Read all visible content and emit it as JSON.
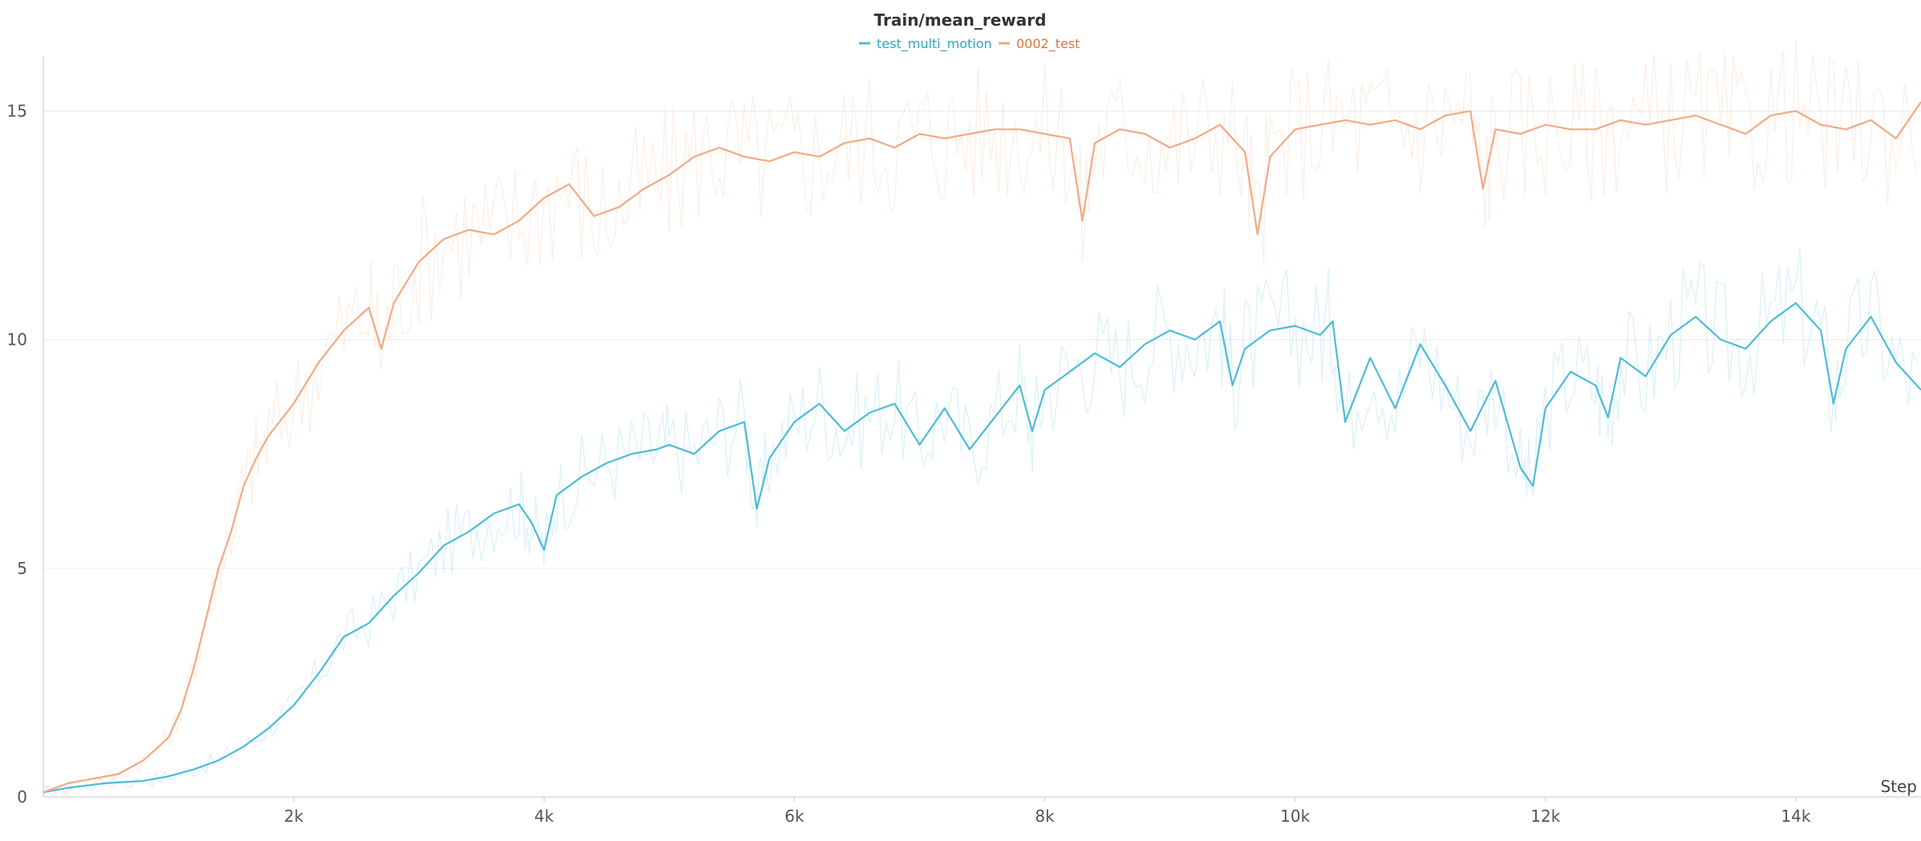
{
  "chart_data": {
    "type": "line",
    "title": "Train/mean_reward",
    "xlabel": "Step",
    "ylabel": "",
    "xlim": [
      0,
      15000
    ],
    "ylim": [
      0,
      16.2
    ],
    "x_ticks": [
      2000,
      4000,
      6000,
      8000,
      10000,
      12000,
      14000
    ],
    "x_tick_labels": [
      "2k",
      "4k",
      "6k",
      "8k",
      "10k",
      "12k",
      "14k"
    ],
    "y_ticks": [
      0,
      5,
      10,
      15
    ],
    "y_tick_labels": [
      "0",
      "5",
      "10",
      "15"
    ],
    "grid": true,
    "legend_position": "top-center",
    "series": [
      {
        "name": "test_multi_motion",
        "color": "#4cbcd6",
        "x": [
          0,
          200,
          500,
          800,
          1000,
          1200,
          1400,
          1600,
          1800,
          2000,
          2200,
          2400,
          2600,
          2800,
          3000,
          3200,
          3400,
          3600,
          3800,
          3900,
          4000,
          4100,
          4300,
          4500,
          4700,
          4900,
          5000,
          5200,
          5400,
          5600,
          5700,
          5800,
          6000,
          6200,
          6400,
          6600,
          6800,
          7000,
          7200,
          7400,
          7600,
          7800,
          7900,
          8000,
          8200,
          8400,
          8600,
          8800,
          9000,
          9200,
          9400,
          9500,
          9600,
          9800,
          10000,
          10200,
          10300,
          10400,
          10600,
          10800,
          11000,
          11200,
          11400,
          11600,
          11800,
          11900,
          12000,
          12200,
          12400,
          12500,
          12600,
          12800,
          13000,
          13200,
          13400,
          13600,
          13800,
          14000,
          14200,
          14300,
          14400,
          14600,
          14800,
          15000
        ],
        "y": [
          0.1,
          0.2,
          0.3,
          0.35,
          0.45,
          0.6,
          0.8,
          1.1,
          1.5,
          2.0,
          2.7,
          3.5,
          3.8,
          4.4,
          4.9,
          5.5,
          5.8,
          6.2,
          6.4,
          6.0,
          5.4,
          6.6,
          7.0,
          7.3,
          7.5,
          7.6,
          7.7,
          7.5,
          8.0,
          8.2,
          6.3,
          7.4,
          8.2,
          8.6,
          8.0,
          8.4,
          8.6,
          7.7,
          8.5,
          7.6,
          8.3,
          9.0,
          8.0,
          8.9,
          9.3,
          9.7,
          9.4,
          9.9,
          10.2,
          10.0,
          10.4,
          9.0,
          9.8,
          10.2,
          10.3,
          10.1,
          10.4,
          8.2,
          9.6,
          8.5,
          9.9,
          9.0,
          8.0,
          9.1,
          7.2,
          6.8,
          8.5,
          9.3,
          9.0,
          8.3,
          9.6,
          9.2,
          10.1,
          10.5,
          10.0,
          9.8,
          10.4,
          10.8,
          10.2,
          8.6,
          9.8,
          10.5,
          9.5,
          8.9
        ]
      },
      {
        "name": "0002_test",
        "color": "#f0aa86",
        "x": [
          0,
          200,
          400,
          600,
          800,
          1000,
          1100,
          1200,
          1300,
          1400,
          1500,
          1600,
          1700,
          1800,
          2000,
          2200,
          2400,
          2600,
          2700,
          2800,
          3000,
          3200,
          3400,
          3600,
          3800,
          4000,
          4200,
          4400,
          4600,
          4800,
          5000,
          5200,
          5400,
          5600,
          5800,
          6000,
          6200,
          6400,
          6600,
          6800,
          7000,
          7200,
          7400,
          7600,
          7800,
          8000,
          8200,
          8300,
          8400,
          8600,
          8800,
          9000,
          9200,
          9400,
          9600,
          9700,
          9800,
          10000,
          10200,
          10400,
          10600,
          10800,
          11000,
          11200,
          11400,
          11500,
          11600,
          11800,
          12000,
          12200,
          12400,
          12600,
          12800,
          13000,
          13200,
          13400,
          13600,
          13800,
          14000,
          14200,
          14400,
          14600,
          14800,
          15000
        ],
        "y": [
          0.1,
          0.3,
          0.4,
          0.5,
          0.8,
          1.3,
          1.9,
          2.8,
          3.9,
          5.0,
          5.8,
          6.8,
          7.4,
          7.9,
          8.6,
          9.5,
          10.2,
          10.7,
          9.8,
          10.8,
          11.7,
          12.2,
          12.4,
          12.3,
          12.6,
          13.1,
          13.4,
          12.7,
          12.9,
          13.3,
          13.6,
          14.0,
          14.2,
          14.0,
          13.9,
          14.1,
          14.0,
          14.3,
          14.4,
          14.2,
          14.5,
          14.4,
          14.5,
          14.6,
          14.6,
          14.5,
          14.4,
          12.6,
          14.3,
          14.6,
          14.5,
          14.2,
          14.4,
          14.7,
          14.1,
          12.3,
          14.0,
          14.6,
          14.7,
          14.8,
          14.7,
          14.8,
          14.6,
          14.9,
          15.0,
          13.3,
          14.6,
          14.5,
          14.7,
          14.6,
          14.6,
          14.8,
          14.7,
          14.8,
          14.9,
          14.7,
          14.5,
          14.9,
          15.0,
          14.7,
          14.6,
          14.8,
          14.4,
          15.2
        ]
      }
    ]
  }
}
